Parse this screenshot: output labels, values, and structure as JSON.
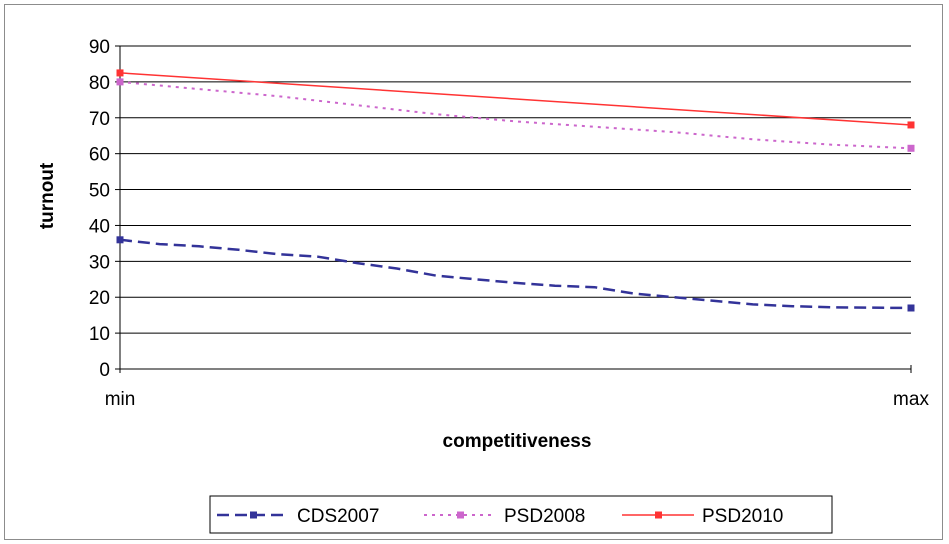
{
  "chart_data": {
    "type": "line",
    "xlabel": "competitiveness",
    "ylabel": "turnout",
    "categories": [
      "min",
      "max"
    ],
    "ylim": [
      0,
      90
    ],
    "yticks": [
      0,
      10,
      20,
      30,
      40,
      50,
      60,
      70,
      80,
      90
    ],
    "grid": true,
    "legend_position": "bottom",
    "series": [
      {
        "name": "CDS2007",
        "color": "#333399",
        "style": "dashed",
        "points": [
          [
            0.0,
            36
          ],
          [
            0.05,
            34.8
          ],
          [
            0.1,
            34.2
          ],
          [
            0.15,
            33.2
          ],
          [
            0.2,
            32
          ],
          [
            0.25,
            31.3
          ],
          [
            0.3,
            29.5
          ],
          [
            0.35,
            28
          ],
          [
            0.4,
            26
          ],
          [
            0.45,
            25
          ],
          [
            0.5,
            24
          ],
          [
            0.55,
            23.2
          ],
          [
            0.6,
            22.8
          ],
          [
            0.65,
            21
          ],
          [
            0.7,
            20
          ],
          [
            0.75,
            19
          ],
          [
            0.8,
            18
          ],
          [
            0.85,
            17.5
          ],
          [
            0.9,
            17.2
          ],
          [
            1.0,
            17
          ]
        ]
      },
      {
        "name": "PSD2008",
        "color": "#cc66cc",
        "style": "dotted",
        "points": [
          [
            0.0,
            80
          ],
          [
            0.1,
            78
          ],
          [
            0.2,
            76
          ],
          [
            0.3,
            73.5
          ],
          [
            0.4,
            71
          ],
          [
            0.5,
            69
          ],
          [
            0.6,
            67.5
          ],
          [
            0.7,
            66
          ],
          [
            0.8,
            64
          ],
          [
            0.9,
            62.5
          ],
          [
            1.0,
            61.5
          ]
        ]
      },
      {
        "name": "PSD2010",
        "color": "#ff3333",
        "style": "solid",
        "points": [
          [
            0.0,
            82.5
          ],
          [
            1.0,
            68
          ]
        ]
      }
    ]
  }
}
